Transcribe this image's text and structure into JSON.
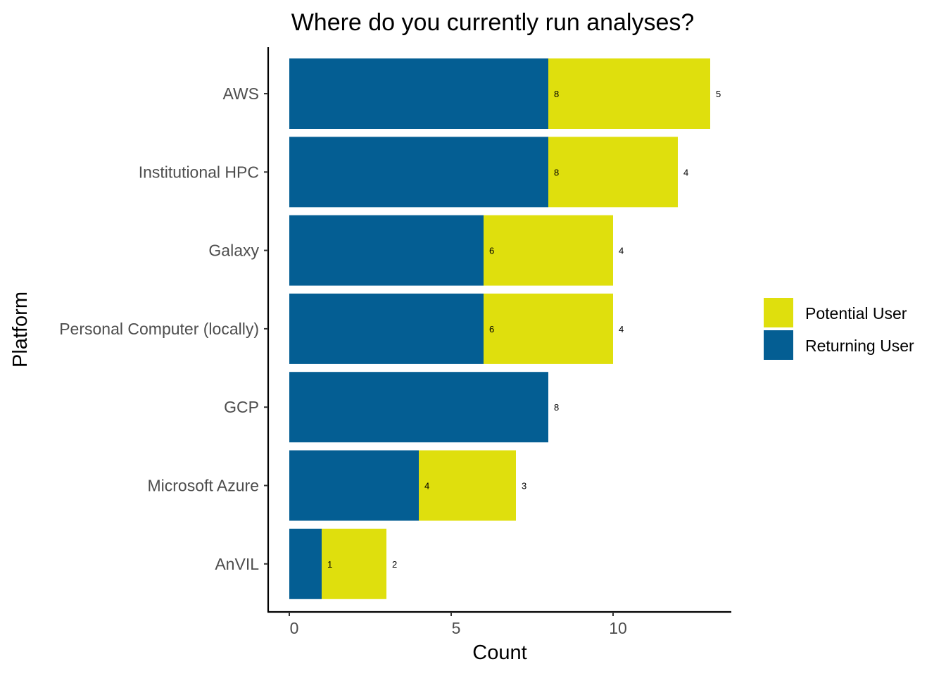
{
  "chart_data": {
    "type": "bar",
    "orientation": "horizontal",
    "stacked": true,
    "title": "Where do you currently run analyses?",
    "xlabel": "Count",
    "ylabel": "Platform",
    "categories": [
      "AWS",
      "Institutional HPC",
      "Galaxy",
      "Personal Computer (locally)",
      "GCP",
      "Microsoft Azure",
      "AnVIL"
    ],
    "series": [
      {
        "name": "Returning User",
        "color": "#045e93",
        "values": [
          8,
          8,
          6,
          6,
          8,
          4,
          1
        ]
      },
      {
        "name": "Potential User",
        "color": "#dfdf0d",
        "values": [
          5,
          4,
          4,
          4,
          0,
          3,
          2
        ]
      }
    ],
    "xticks": [
      "0",
      "5",
      "10"
    ],
    "xlim": [
      -0.65,
      13.6
    ],
    "legend": {
      "position": "right",
      "entries": [
        "Potential User",
        "Returning User"
      ]
    },
    "grid": false
  }
}
